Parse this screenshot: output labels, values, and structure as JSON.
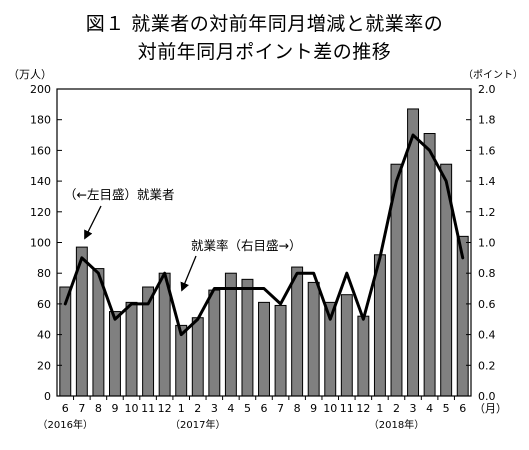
{
  "chart_data": {
    "type": "bar+line",
    "title_line1": "図１ 就業者の対前年同月増減と就業率の",
    "title_line2": "対前年同月ポイント差の推移",
    "left_axis": {
      "unit": "（万人）",
      "min": 0,
      "max": 200,
      "step": 20,
      "tick_labels": [
        "0",
        "20",
        "40",
        "60",
        "80",
        "100",
        "120",
        "140",
        "160",
        "180",
        "200"
      ]
    },
    "right_axis": {
      "unit": "（ポイント）",
      "min": 0,
      "max": 2.0,
      "step": 0.2,
      "tick_labels": [
        "0.0",
        "0.2",
        "0.4",
        "0.6",
        "0.8",
        "1.0",
        "1.2",
        "1.4",
        "1.6",
        "1.8",
        "2.0"
      ]
    },
    "x_unit": "（月）",
    "categories": [
      "6",
      "7",
      "8",
      "9",
      "10",
      "11",
      "12",
      "1",
      "2",
      "3",
      "4",
      "5",
      "6",
      "7",
      "8",
      "9",
      "10",
      "11",
      "12",
      "1",
      "2",
      "3",
      "4",
      "5",
      "6"
    ],
    "year_labels": [
      {
        "index": 0,
        "text": "（2016年）"
      },
      {
        "index": 8,
        "text": "（2017年）"
      },
      {
        "index": 20,
        "text": "（2018年）"
      }
    ],
    "series": [
      {
        "name": "就業者",
        "type": "bar",
        "axis": "left",
        "color": "#808080",
        "values": [
          71,
          97,
          83,
          55,
          61,
          71,
          80,
          46,
          51,
          69,
          80,
          76,
          61,
          59,
          84,
          74,
          61,
          66,
          52,
          92,
          151,
          187,
          171,
          151,
          104
        ]
      },
      {
        "name": "就業率",
        "type": "line",
        "axis": "right",
        "color": "#000000",
        "values": [
          0.6,
          0.9,
          0.8,
          0.5,
          0.6,
          0.6,
          0.8,
          0.4,
          0.5,
          0.7,
          0.7,
          0.7,
          0.7,
          0.6,
          0.8,
          0.8,
          0.5,
          0.8,
          0.5,
          0.9,
          1.4,
          1.7,
          1.6,
          1.4,
          0.9
        ]
      }
    ],
    "annotations": {
      "bar_label": "（←左目盛）就業者",
      "line_label": "就業率（右目盛→）"
    }
  }
}
